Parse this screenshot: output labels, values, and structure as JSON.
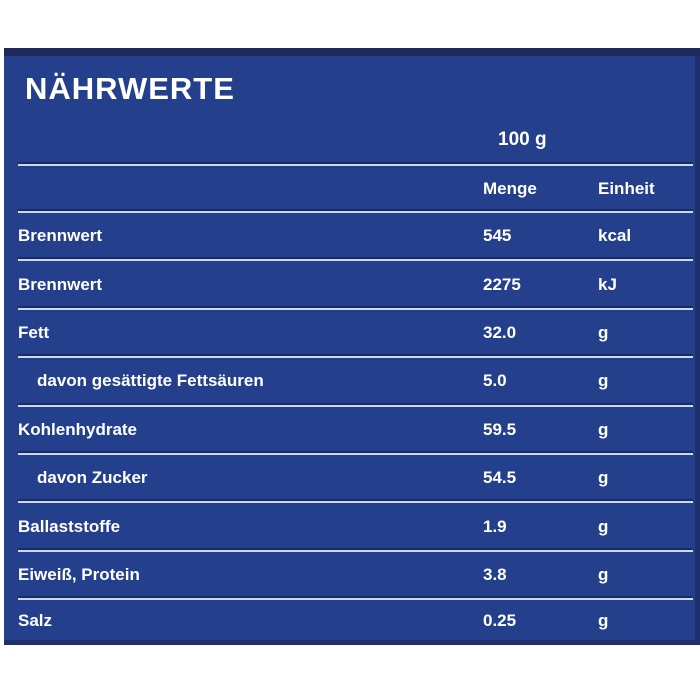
{
  "palette": {
    "panel_background": "#24408d",
    "panel_border_dark": "#1c2a5e",
    "separator_light": "#ccd7f2",
    "separator_dark": "#1b2a64",
    "text_color": "#ffffff",
    "page_background": "#ffffff"
  },
  "panel": {
    "title": "NÄHRWERTE",
    "serving_header": "100 g",
    "columns": {
      "amount": "Menge",
      "unit": "Einheit"
    },
    "rows": [
      {
        "label": "Brennwert",
        "amount": "545",
        "unit": "kcal",
        "indent": false
      },
      {
        "label": "Brennwert",
        "amount": "2275",
        "unit": "kJ",
        "indent": false
      },
      {
        "label": "Fett",
        "amount": "32.0",
        "unit": "g",
        "indent": false
      },
      {
        "label": "davon gesättigte Fettsäuren",
        "amount": "5.0",
        "unit": "g",
        "indent": true
      },
      {
        "label": "Kohlenhydrate",
        "amount": "59.5",
        "unit": "g",
        "indent": false
      },
      {
        "label": "davon Zucker",
        "amount": "54.5",
        "unit": "g",
        "indent": true
      },
      {
        "label": "Ballaststoffe",
        "amount": "1.9",
        "unit": "g",
        "indent": false
      },
      {
        "label": "Eiweiß, Protein",
        "amount": "3.8",
        "unit": "g",
        "indent": false
      },
      {
        "label": "Salz",
        "amount": "0.25",
        "unit": "g",
        "indent": false
      }
    ]
  }
}
